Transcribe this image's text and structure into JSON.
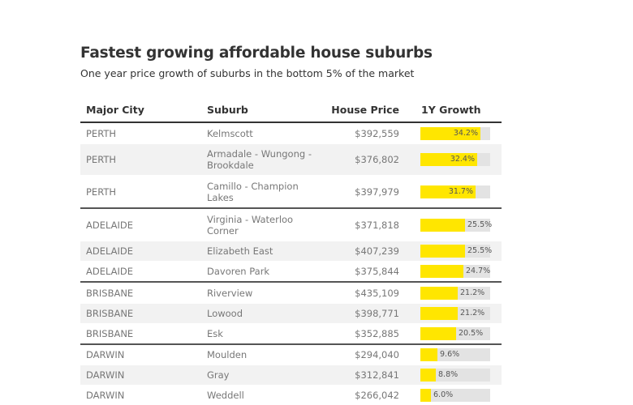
{
  "title": "Fastest growing affordable house suburbs",
  "subtitle": "One year price growth of suburbs in the bottom 5% of the market",
  "colors": {
    "bar": "#ffe600",
    "track": "#e3e3e3",
    "alt_row": "#f2f2f2"
  },
  "chart_data": {
    "type": "table",
    "columns": [
      "Major City",
      "Suburb",
      "House Price",
      "1Y Growth"
    ],
    "growth_max_percent": 40,
    "rows": [
      {
        "city": "PERTH",
        "suburb": "Kelmscott",
        "price": "$392,559",
        "growth": 34.2,
        "growth_label": "34.2%",
        "height": 25,
        "alt": false,
        "group_end": false
      },
      {
        "city": "PERTH",
        "suburb": "Armadale - Wungong - Brookdale",
        "price": "$376,802",
        "growth": 32.4,
        "growth_label": "32.4%",
        "height": 38,
        "alt": true,
        "group_end": false
      },
      {
        "city": "PERTH",
        "suburb": "Camillo - Champion Lakes",
        "price": "$397,979",
        "growth": 31.7,
        "growth_label": "31.7%",
        "height": 39,
        "alt": false,
        "group_end": true
      },
      {
        "city": "ADELAIDE",
        "suburb": "Virginia - Waterloo Corner",
        "price": "$371,818",
        "growth": 25.5,
        "growth_label": "25.5%",
        "height": 39,
        "alt": false,
        "group_end": false
      },
      {
        "city": "ADELAIDE",
        "suburb": "Elizabeth East",
        "price": "$407,239",
        "growth": 25.5,
        "growth_label": "25.5%",
        "height": 24,
        "alt": true,
        "group_end": false
      },
      {
        "city": "ADELAIDE",
        "suburb": "Davoren Park",
        "price": "$375,844",
        "growth": 24.7,
        "growth_label": "24.7%",
        "height": 24,
        "alt": false,
        "group_end": true
      },
      {
        "city": "BRISBANE",
        "suburb": "Riverview",
        "price": "$435,109",
        "growth": 21.2,
        "growth_label": "21.2%",
        "height": 25,
        "alt": false,
        "group_end": false
      },
      {
        "city": "BRISBANE",
        "suburb": "Lowood",
        "price": "$398,771",
        "growth": 21.2,
        "growth_label": "21.2%",
        "height": 24,
        "alt": true,
        "group_end": false
      },
      {
        "city": "BRISBANE",
        "suburb": "Esk",
        "price": "$352,885",
        "growth": 20.5,
        "growth_label": "20.5%",
        "height": 24,
        "alt": false,
        "group_end": true
      },
      {
        "city": "DARWIN",
        "suburb": "Moulden",
        "price": "$294,040",
        "growth": 9.6,
        "growth_label": "9.6%",
        "height": 24,
        "alt": false,
        "group_end": false
      },
      {
        "city": "DARWIN",
        "suburb": "Gray",
        "price": "$312,841",
        "growth": 8.8,
        "growth_label": "8.8%",
        "height": 24,
        "alt": true,
        "group_end": false
      },
      {
        "city": "DARWIN",
        "suburb": "Weddell",
        "price": "$266,042",
        "growth": 6.0,
        "growth_label": "6.0%",
        "height": 24,
        "alt": false,
        "group_end": true
      }
    ]
  }
}
